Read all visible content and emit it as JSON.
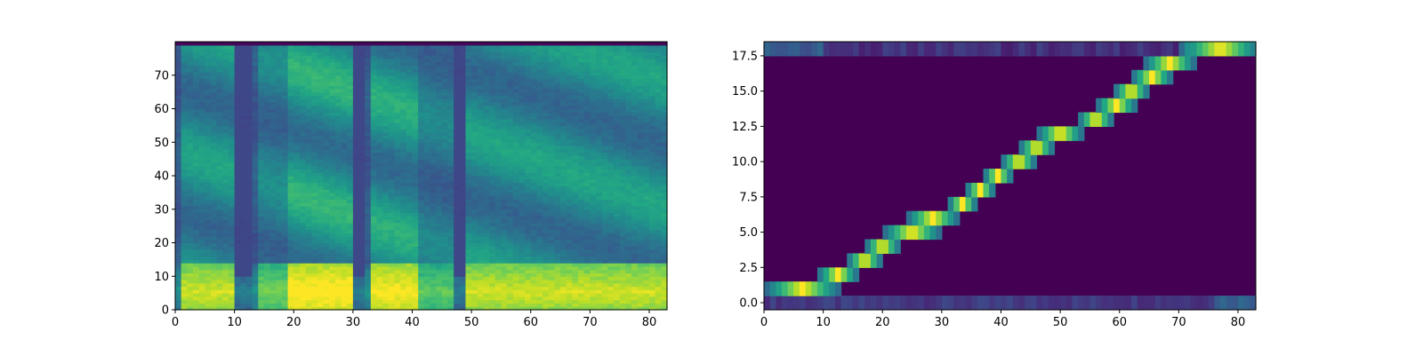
{
  "chart_data": [
    {
      "type": "heatmap",
      "description_kind": "mel-spectrogram",
      "colormap": "viridis",
      "title": "",
      "xlabel": "",
      "ylabel": "",
      "x_range": [
        0,
        83
      ],
      "y_range": [
        0,
        80
      ],
      "x_ticks": [
        0,
        10,
        20,
        30,
        40,
        50,
        60,
        70,
        80
      ],
      "y_ticks": [
        0,
        10,
        20,
        30,
        40,
        50,
        60,
        70
      ],
      "x_tick_labels": [
        "0",
        "10",
        "20",
        "30",
        "40",
        "50",
        "60",
        "70",
        "80"
      ],
      "y_tick_labels": [
        "0",
        "10",
        "20",
        "30",
        "40",
        "50",
        "60",
        "70"
      ],
      "n_frames": 83,
      "n_bins": 80,
      "energy_segments": [
        {
          "x": [
            1,
            9
          ],
          "strength": 0.85
        },
        {
          "x": [
            14,
            19
          ],
          "strength": 0.65
        },
        {
          "x": [
            19,
            29
          ],
          "strength": 1.0
        },
        {
          "x": [
            33,
            40
          ],
          "strength": 0.95
        },
        {
          "x": [
            40,
            46
          ],
          "strength": 0.6
        },
        {
          "x": [
            49,
            83
          ],
          "strength": 0.85
        }
      ],
      "silence_frames": [
        10,
        11,
        12,
        30,
        31,
        47,
        48
      ],
      "grid": false
    },
    {
      "type": "heatmap",
      "description_kind": "attention-alignment",
      "colormap": "viridis",
      "title": "",
      "xlabel": "",
      "ylabel": "",
      "x_range": [
        0,
        83
      ],
      "y_range": [
        -0.5,
        18.5
      ],
      "x_ticks": [
        0,
        10,
        20,
        30,
        40,
        50,
        60,
        70,
        80
      ],
      "y_ticks": [
        0.0,
        2.5,
        5.0,
        7.5,
        10.0,
        12.5,
        15.0,
        17.5
      ],
      "x_tick_labels": [
        "0",
        "10",
        "20",
        "30",
        "40",
        "50",
        "60",
        "70",
        "80"
      ],
      "y_tick_labels": [
        "0.0",
        "2.5",
        "5.0",
        "7.5",
        "10.0",
        "12.5",
        "15.0",
        "17.5"
      ],
      "n_frames": 83,
      "n_tokens": 19,
      "alignment_path": [
        {
          "token": 1,
          "frames": [
            0,
            12
          ]
        },
        {
          "token": 2,
          "frames": [
            9,
            15
          ]
        },
        {
          "token": 3,
          "frames": [
            14,
            19
          ]
        },
        {
          "token": 4,
          "frames": [
            17,
            22
          ]
        },
        {
          "token": 5,
          "frames": [
            20,
            29
          ]
        },
        {
          "token": 6,
          "frames": [
            24,
            32
          ]
        },
        {
          "token": 7,
          "frames": [
            31,
            35
          ]
        },
        {
          "token": 8,
          "frames": [
            34,
            38
          ]
        },
        {
          "token": 9,
          "frames": [
            37,
            41
          ]
        },
        {
          "token": 10,
          "frames": [
            40,
            45
          ]
        },
        {
          "token": 11,
          "frames": [
            43,
            48
          ]
        },
        {
          "token": 12,
          "frames": [
            46,
            53
          ]
        },
        {
          "token": 13,
          "frames": [
            53,
            58
          ]
        },
        {
          "token": 14,
          "frames": [
            56,
            62
          ]
        },
        {
          "token": 15,
          "frames": [
            59,
            64
          ]
        },
        {
          "token": 16,
          "frames": [
            62,
            68
          ]
        },
        {
          "token": 17,
          "frames": [
            64,
            72
          ]
        },
        {
          "token": 18,
          "frames": [
            70,
            83
          ]
        }
      ],
      "grid": false
    }
  ]
}
